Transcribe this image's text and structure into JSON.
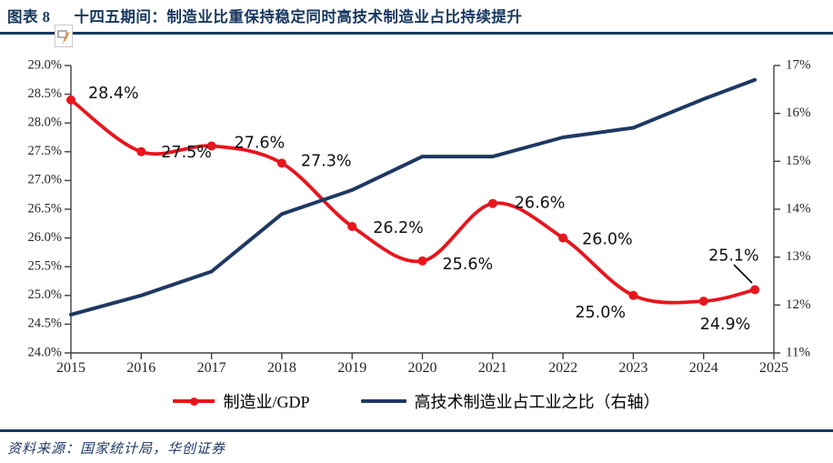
{
  "header": {
    "figure_label": "图表 8",
    "title": "十四五期间：制造业比重保持稳定同时高技术制造业占比持续提升"
  },
  "icons": {
    "header_marker": "note-pencil-icon"
  },
  "footer": {
    "source": "资料来源：国家统计局，华创证券"
  },
  "colors": {
    "navy_accent": "#17375E",
    "red_series": "#E8151C",
    "blue_series": "#1F3864",
    "axis_line": "#404040",
    "tick_text": "#262626",
    "data_label_text": "#111111"
  },
  "chart_data": {
    "type": "line",
    "title": "十四五期间：制造业比重保持稳定同时高技术制造业占比持续提升",
    "x_tick_labels": [
      "2015",
      "2016",
      "2017",
      "2018",
      "2019",
      "2020",
      "2021",
      "2022",
      "2023",
      "2024",
      "2025"
    ],
    "left_axis": {
      "min": 24.0,
      "max": 29.0,
      "step": 0.5,
      "ticks": [
        "29.0%",
        "28.5%",
        "28.0%",
        "27.5%",
        "27.0%",
        "26.5%",
        "26.0%",
        "25.5%",
        "25.0%",
        "24.5%",
        "24.0%"
      ]
    },
    "right_axis": {
      "min": 11,
      "max": 17,
      "step": 1,
      "ticks": [
        "17%",
        "16%",
        "15%",
        "14%",
        "13%",
        "12%",
        "11%"
      ]
    },
    "grid": false,
    "legend_position": "bottom",
    "series": [
      {
        "name": "制造业/GDP",
        "axis": "left",
        "color": "#E8151C",
        "marker": true,
        "smooth": true,
        "x": [
          0,
          1,
          2,
          3,
          4,
          5,
          6,
          7,
          8,
          9,
          9.73
        ],
        "values": [
          28.4,
          27.5,
          27.6,
          27.3,
          26.2,
          25.6,
          26.6,
          26.0,
          25.0,
          24.9,
          25.1
        ],
        "labels": [
          "28.4%",
          "27.5%",
          "27.6%",
          "27.3%",
          "26.2%",
          "25.6%",
          "26.6%",
          "26.0%",
          "25.0%",
          "24.9%",
          "25.1%"
        ]
      },
      {
        "name": "高技术制造业占工业之比（右轴）",
        "axis": "right",
        "color": "#1F3864",
        "marker": false,
        "smooth": false,
        "x": [
          0,
          1,
          2,
          3,
          4,
          5,
          6,
          7,
          8,
          9,
          9.73
        ],
        "values": [
          11.8,
          12.2,
          12.7,
          13.9,
          14.4,
          15.1,
          15.1,
          15.5,
          15.7,
          16.3,
          16.7
        ]
      }
    ],
    "legend": [
      {
        "label": "制造业/GDP",
        "color": "#E8151C",
        "marker": true
      },
      {
        "label": "高技术制造业占工业之比（右轴）",
        "color": "#1F3864",
        "marker": false
      }
    ]
  }
}
